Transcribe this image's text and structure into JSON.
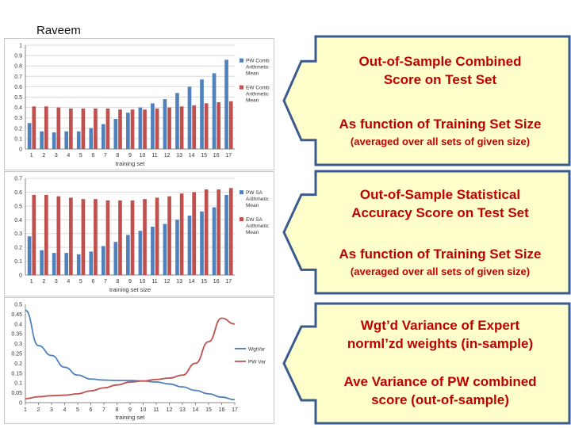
{
  "author": "Raveem",
  "chart_data": [
    {
      "type": "bar",
      "categories": [
        "1",
        "2",
        "3",
        "4",
        "5",
        "6",
        "7",
        "8",
        "9",
        "10",
        "11",
        "12",
        "13",
        "14",
        "15",
        "16",
        "17"
      ],
      "series": [
        {
          "name": "PW Comb Arithmetic Mean",
          "color": "#4f81bd",
          "values": [
            0.25,
            0.17,
            0.16,
            0.17,
            0.17,
            0.2,
            0.24,
            0.29,
            0.35,
            0.4,
            0.44,
            0.48,
            0.54,
            0.6,
            0.67,
            0.73,
            0.86
          ]
        },
        {
          "name": "EW Comb Arithmetic Mean",
          "color": "#c0504d",
          "values": [
            0.41,
            0.41,
            0.4,
            0.39,
            0.39,
            0.39,
            0.39,
            0.38,
            0.38,
            0.38,
            0.39,
            0.4,
            0.41,
            0.42,
            0.44,
            0.45,
            0.46
          ]
        }
      ],
      "title": "",
      "xlabel": "training set",
      "ylabel": "",
      "ylim": [
        0,
        1
      ],
      "yticks": [
        "0",
        "0.1",
        "0.2",
        "0.3",
        "0.4",
        "0.5",
        "0.6",
        "0.7",
        "0.8",
        "0.9",
        "1"
      ],
      "grid": true,
      "legend": "right"
    },
    {
      "type": "bar",
      "categories": [
        "1",
        "2",
        "3",
        "4",
        "5",
        "6",
        "7",
        "8",
        "9",
        "10",
        "11",
        "12",
        "13",
        "14",
        "15",
        "16",
        "17"
      ],
      "series": [
        {
          "name": "PW SA Arithmetic Mean",
          "color": "#4f81bd",
          "values": [
            0.28,
            0.18,
            0.16,
            0.16,
            0.15,
            0.17,
            0.21,
            0.24,
            0.29,
            0.32,
            0.35,
            0.37,
            0.4,
            0.43,
            0.46,
            0.49,
            0.58
          ]
        },
        {
          "name": "EW SA Arithmetic Mean",
          "color": "#c0504d",
          "values": [
            0.58,
            0.58,
            0.57,
            0.56,
            0.55,
            0.55,
            0.54,
            0.54,
            0.54,
            0.55,
            0.56,
            0.57,
            0.59,
            0.6,
            0.62,
            0.62,
            0.63
          ]
        }
      ],
      "title": "",
      "xlabel": "training set size",
      "ylabel": "",
      "ylim": [
        0,
        0.7
      ],
      "yticks": [
        "0",
        "0.1",
        "0.2",
        "0.3",
        "0.4",
        "0.5",
        "0.6",
        "0.7"
      ],
      "grid": true,
      "legend": "right"
    },
    {
      "type": "line",
      "x": [
        "1",
        "2",
        "3",
        "4",
        "5",
        "6",
        "7",
        "8",
        "9",
        "10",
        "11",
        "12",
        "13",
        "14",
        "15",
        "16",
        "17"
      ],
      "series": [
        {
          "name": "WgtVar",
          "color": "#4f81bd",
          "values": [
            0.47,
            0.29,
            0.24,
            0.18,
            0.14,
            0.12,
            0.115,
            0.113,
            0.113,
            0.11,
            0.105,
            0.095,
            0.08,
            0.062,
            0.045,
            0.028,
            0.015
          ]
        },
        {
          "name": "PW Var",
          "color": "#c0504d",
          "values": [
            0.02,
            0.03,
            0.035,
            0.038,
            0.045,
            0.06,
            0.075,
            0.09,
            0.105,
            0.11,
            0.118,
            0.125,
            0.14,
            0.2,
            0.31,
            0.43,
            0.4
          ]
        }
      ],
      "title": "",
      "xlabel": "training set",
      "ylabel": "",
      "ylim": [
        0,
        0.5
      ],
      "yticks": [
        "0",
        "0.05",
        "0.1",
        "0.15",
        "0.2",
        "0.25",
        "0.3",
        "0.35",
        "0.4",
        "0.45",
        "0.5"
      ],
      "grid": false,
      "legend": "right"
    }
  ],
  "callouts": [
    {
      "line1": "Out-of-Sample Combined",
      "line2": "Score on Test Set",
      "line3": "As function of Training Set Size",
      "line4": "(averaged over all  sets of given size)"
    },
    {
      "line1": "Out-of-Sample Statistical",
      "line2": "Accuracy  Score on Test Set",
      "line3": "As function of Training Set Size",
      "line4": "(averaged over all  sets of given size)"
    },
    {
      "line1": "Wgt’d Variance of Expert",
      "line2": "norml’zd weights (in-sample)",
      "line3": "Ave Variance of PW combined",
      "line4": "score (out-of-sample)"
    }
  ],
  "colors": {
    "callout_fill": "#ffffcc",
    "callout_border": "#3a5b8c",
    "callout_text": "#c00000"
  }
}
